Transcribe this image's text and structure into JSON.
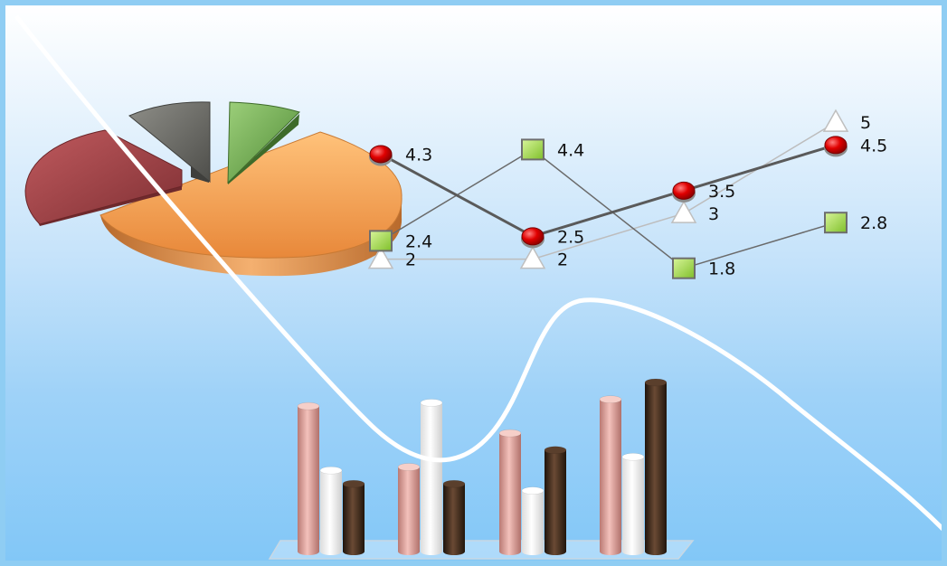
{
  "chart_data": [
    {
      "type": "pie",
      "style": "3d-exploded",
      "slices": [
        {
          "color": "#f4a24e",
          "value": 60
        },
        {
          "color": "#a8484e",
          "value": 16
        },
        {
          "color": "#6e6e6a",
          "value": 10
        },
        {
          "color": "#6aa84f",
          "value": 9
        }
      ]
    },
    {
      "type": "line",
      "x": [
        1,
        2,
        3,
        4
      ],
      "series": [
        {
          "marker": "circle",
          "color": "#e00000",
          "line_color": "#5a5a5a",
          "values": [
            4.3,
            2.5,
            3.5,
            4.5
          ],
          "labels": [
            "4.3",
            "2.5",
            "3.5",
            "4.5"
          ]
        },
        {
          "marker": "square",
          "color": "#a6d94a",
          "line_color": "#6a6a6a",
          "values": [
            2.4,
            4.4,
            1.8,
            2.8
          ],
          "labels": [
            "2.4",
            "4.4",
            "1.8",
            "2.8"
          ]
        },
        {
          "marker": "triangle",
          "color": "#ffffff",
          "line_color": "#bdbdbd",
          "values": [
            2,
            2,
            3,
            5
          ],
          "labels": [
            "2",
            "2",
            "3",
            "5"
          ]
        }
      ]
    },
    {
      "type": "bar",
      "style": "3d-cylinder",
      "categories": [
        "1",
        "2",
        "3",
        "4"
      ],
      "series": [
        {
          "color": "#e2a09a",
          "values": [
            4.3,
            2.5,
            3.5,
            4.5
          ]
        },
        {
          "color": "#ffffff",
          "values": [
            2.4,
            4.4,
            1.8,
            2.8
          ]
        },
        {
          "color": "#3b2a1e",
          "values": [
            2,
            2,
            3,
            5
          ]
        }
      ]
    }
  ]
}
